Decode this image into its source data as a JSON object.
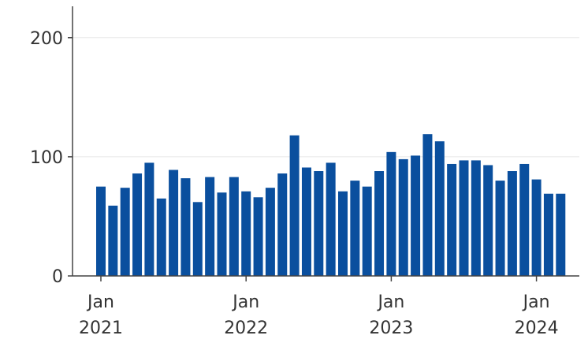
{
  "chart_data": {
    "type": "bar",
    "title": "",
    "xlabel": "",
    "ylabel": "",
    "ylim": [
      0,
      225
    ],
    "y_ticks": [
      {
        "value": 0,
        "label": "0"
      },
      {
        "value": 100,
        "label": "100"
      },
      {
        "value": 200,
        "label": "200"
      }
    ],
    "x_ticks": [
      {
        "month": "2021-01",
        "line1": "Jan",
        "line2": "2021"
      },
      {
        "month": "2022-01",
        "line1": "Jan",
        "line2": "2022"
      },
      {
        "month": "2023-01",
        "line1": "Jan",
        "line2": "2023"
      },
      {
        "month": "2024-01",
        "line1": "Jan",
        "line2": "2024"
      }
    ],
    "grid": true,
    "bar_color": "#0a4f9e",
    "categories": [
      "2021-01",
      "2021-02",
      "2021-03",
      "2021-04",
      "2021-05",
      "2021-06",
      "2021-07",
      "2021-08",
      "2021-09",
      "2021-10",
      "2021-11",
      "2021-12",
      "2022-01",
      "2022-02",
      "2022-03",
      "2022-04",
      "2022-05",
      "2022-06",
      "2022-07",
      "2022-08",
      "2022-09",
      "2022-10",
      "2022-11",
      "2022-12",
      "2023-01",
      "2023-02",
      "2023-03",
      "2023-04",
      "2023-05",
      "2023-06",
      "2023-07",
      "2023-08",
      "2023-09",
      "2023-10",
      "2023-11",
      "2023-12",
      "2024-01",
      "2024-02",
      "2024-03"
    ],
    "values": [
      75,
      59,
      74,
      86,
      95,
      65,
      89,
      82,
      62,
      83,
      70,
      83,
      71,
      66,
      74,
      86,
      118,
      91,
      88,
      95,
      71,
      80,
      75,
      88,
      104,
      98,
      101,
      119,
      113,
      94,
      97,
      97,
      93,
      80,
      88,
      94,
      81,
      69,
      69
    ]
  }
}
